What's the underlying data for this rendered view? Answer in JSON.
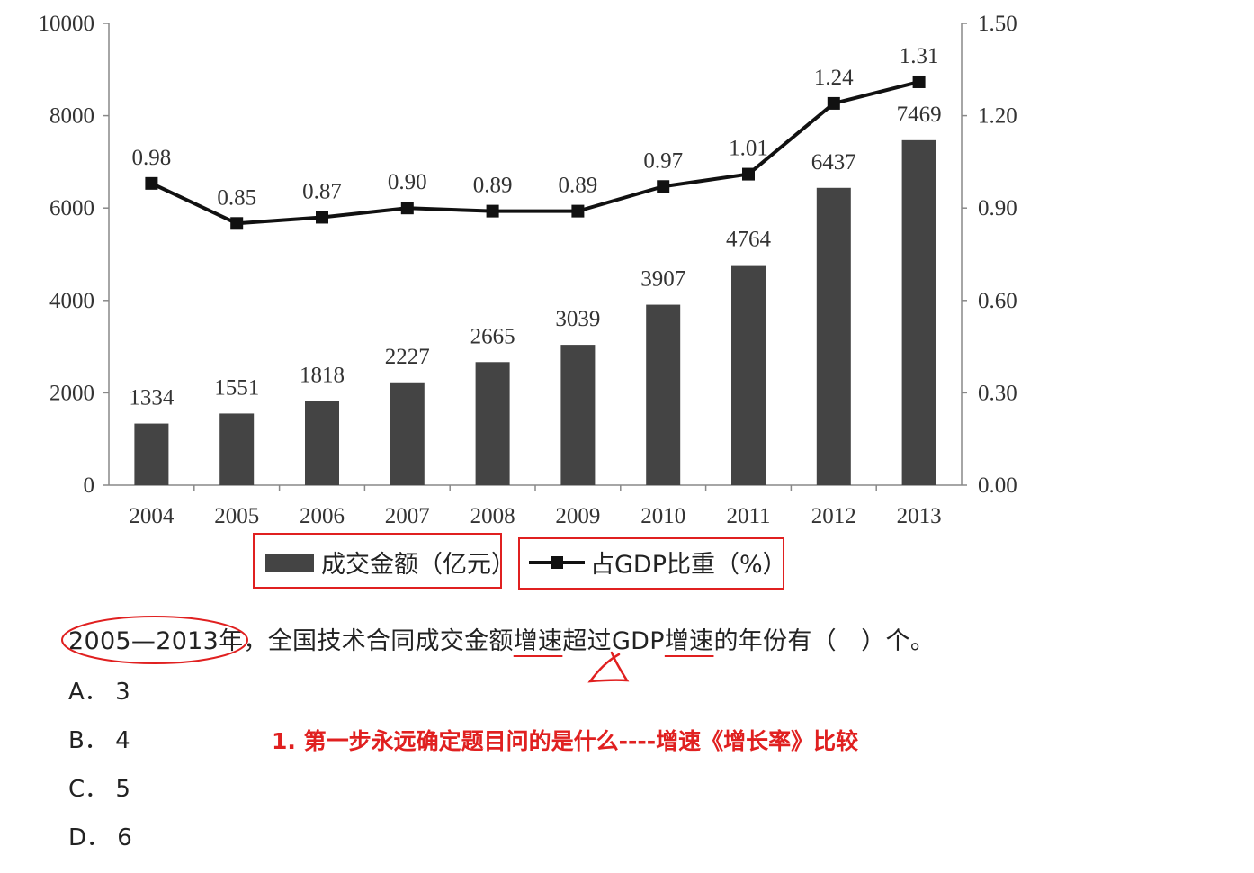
{
  "chart_data": {
    "type": "bar+line",
    "categories": [
      "2004",
      "2005",
      "2006",
      "2007",
      "2008",
      "2009",
      "2010",
      "2011",
      "2012",
      "2013"
    ],
    "series": [
      {
        "name": "成交金额（亿元）",
        "type": "bar",
        "axis": "left",
        "values": [
          1334,
          1551,
          1818,
          2227,
          2665,
          3039,
          3907,
          4764,
          6437,
          7469
        ],
        "labels": [
          "1334",
          "1551",
          "1818",
          "2227",
          "2665",
          "3039",
          "3907",
          "4764",
          "6437",
          "7469"
        ]
      },
      {
        "name": "占GDP比重（%）",
        "type": "line",
        "axis": "right",
        "values": [
          0.98,
          0.85,
          0.87,
          0.9,
          0.89,
          0.89,
          0.97,
          1.01,
          1.24,
          1.31
        ],
        "labels": [
          "0.98",
          "0.85",
          "0.87",
          "0.90",
          "0.89",
          "0.89",
          "0.97",
          "1.01",
          "1.24",
          "1.31"
        ]
      }
    ],
    "y_left": {
      "min": 0,
      "max": 10000,
      "ticks": [
        "0",
        "2000",
        "4000",
        "6000",
        "8000",
        "10000"
      ]
    },
    "y_right": {
      "min": 0,
      "max": 1.5,
      "ticks": [
        "0.00",
        "0.30",
        "0.60",
        "0.90",
        "1.20",
        "1.50"
      ]
    },
    "legend": {
      "position": "bottom"
    },
    "grid": false,
    "colors": {
      "bar": "#444444",
      "line": "#111111",
      "annotation": "#e02020"
    }
  },
  "question": {
    "part1": "2005—2013年，全国技术合同成交金额",
    "u1": "增速",
    "part2": "超过GDP",
    "u2": "增速",
    "part3": "的年份有（　）个。"
  },
  "options": [
    {
      "letter": "A．",
      "value": "3"
    },
    {
      "letter": "B．",
      "value": "4"
    },
    {
      "letter": "C．",
      "value": "5"
    },
    {
      "letter": "D．",
      "value": "6"
    }
  ],
  "note": "1. 第一步永远确定题目问的是什么----增速《增长率》比较"
}
